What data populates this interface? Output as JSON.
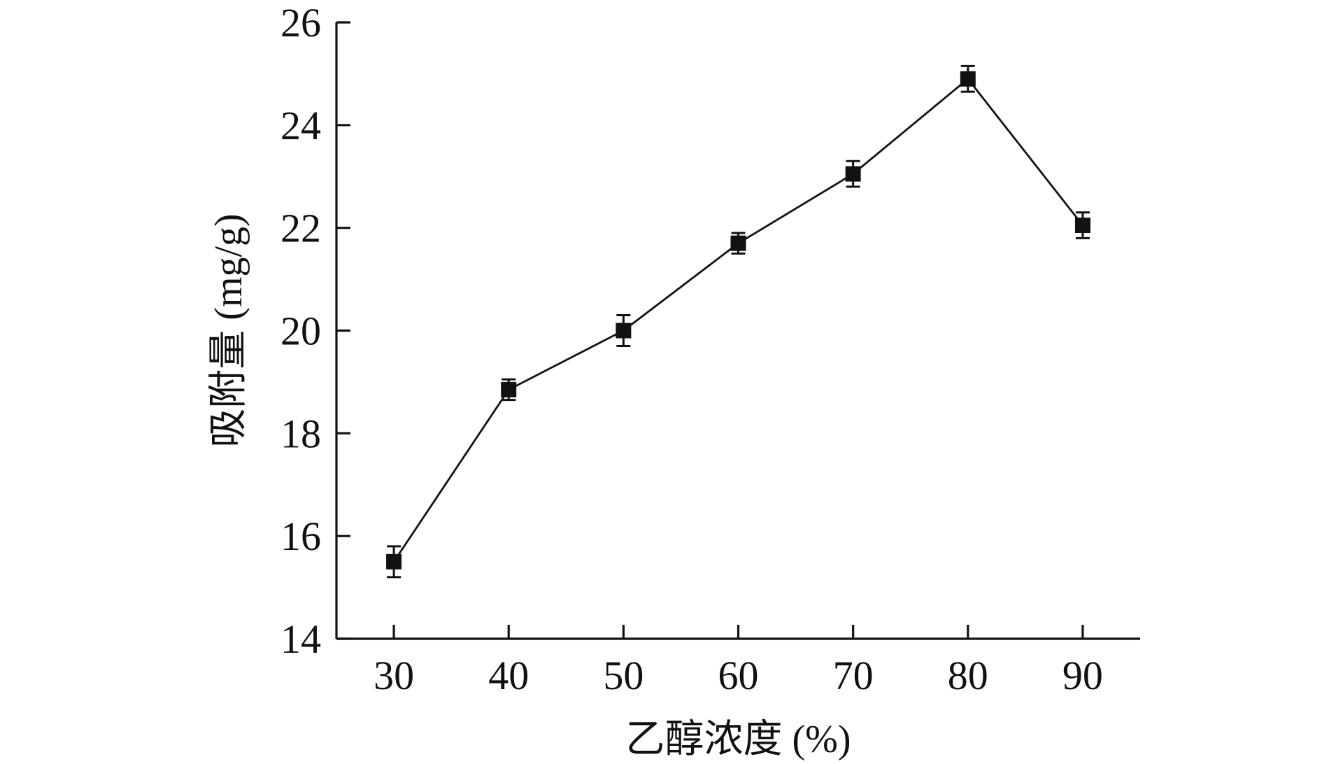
{
  "chart_data": {
    "type": "line",
    "title": "",
    "xlabel": "乙醇浓度 (%)",
    "ylabel": "吸附量 (mg/g)",
    "x": [
      30,
      40,
      50,
      60,
      70,
      80,
      90
    ],
    "x_ticks": [
      "30",
      "40",
      "50",
      "60",
      "70",
      "80",
      "90"
    ],
    "y_ticks": [
      "14",
      "16",
      "18",
      "20",
      "22",
      "24",
      "26"
    ],
    "xlim": [
      25,
      95
    ],
    "ylim": [
      14,
      26
    ],
    "series": [
      {
        "values": [
          15.5,
          18.85,
          20.0,
          21.7,
          23.05,
          24.9,
          22.05
        ],
        "errors": [
          0.3,
          0.2,
          0.3,
          0.2,
          0.25,
          0.25,
          0.25
        ],
        "marker": "square",
        "color": "#111111"
      }
    ],
    "grid": false,
    "legend": "none"
  }
}
